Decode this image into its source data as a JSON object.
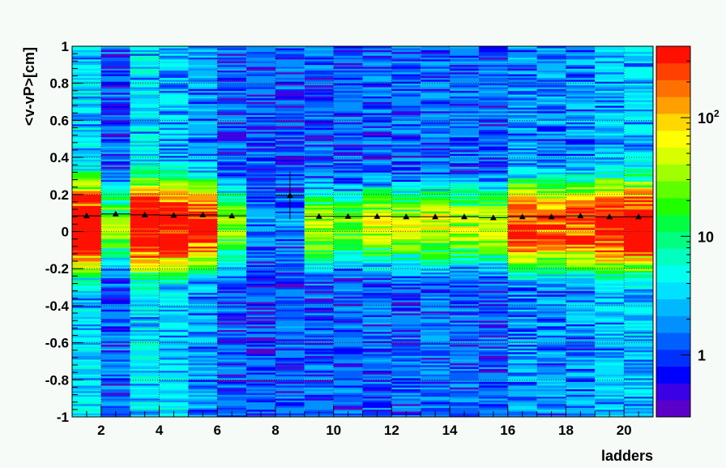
{
  "chart_data": {
    "type": "heatmap",
    "title": "",
    "xlabel": "ladders",
    "ylabel": "<v-vP>[cm]",
    "xlim": [
      1,
      21
    ],
    "ylim": [
      -1,
      1
    ],
    "x_ticks": [
      2,
      4,
      6,
      8,
      10,
      12,
      14,
      16,
      18,
      20
    ],
    "y_ticks": [
      -1,
      -0.8,
      -0.6,
      -0.4,
      -0.2,
      0,
      0.2,
      0.4,
      0.6,
      0.8,
      1
    ],
    "y_tick_labels": [
      "-1",
      "-0.8",
      "-0.6",
      "-0.4",
      "-0.2",
      "0",
      "0.2",
      "0.4",
      "0.6",
      "0.8",
      "1"
    ],
    "grid": true,
    "color_scale": "log",
    "colorbar_ticks": [
      {
        "value": 1,
        "label": "1"
      },
      {
        "value": 10,
        "label": "10"
      },
      {
        "value": 100,
        "label": "10",
        "sup": "2"
      }
    ],
    "colorbar_range": [
      0.3,
      400
    ],
    "palette": [
      "#5a00c8",
      "#3a00e6",
      "#0000ff",
      "#0030ff",
      "#0060ff",
      "#0090ff",
      "#00b8ff",
      "#00e0ff",
      "#00fff0",
      "#00ffc0",
      "#00ff80",
      "#00ff40",
      "#20ff00",
      "#60ff00",
      "#a0ff00",
      "#d8ff00",
      "#ffff00",
      "#ffd800",
      "#ffa000",
      "#ff7000",
      "#ff4000",
      "#ff1000"
    ],
    "profile_points": {
      "x": [
        1.5,
        2.5,
        3.5,
        4.5,
        5.5,
        6.5,
        8.5,
        9.5,
        10.5,
        11.5,
        12.5,
        13.5,
        14.5,
        15.5,
        16.5,
        17.5,
        18.5,
        19.5,
        20.5
      ],
      "y": [
        0.085,
        0.095,
        0.09,
        0.088,
        0.09,
        0.085,
        0.195,
        0.082,
        0.082,
        0.082,
        0.08,
        0.08,
        0.08,
        0.075,
        0.08,
        0.08,
        0.085,
        0.08,
        0.08
      ],
      "yerr": [
        0.005,
        0.005,
        0.005,
        0.005,
        0.005,
        0.005,
        0.13,
        0.005,
        0.005,
        0.005,
        0.005,
        0.005,
        0.005,
        0.005,
        0.005,
        0.005,
        0.005,
        0.005,
        0.005
      ]
    },
    "peak_density": [
      900,
      30,
      1000,
      800,
      400,
      30,
      0.5,
      0.8,
      40,
      25,
      55,
      45,
      60,
      45,
      45,
      350,
      250,
      300,
      600,
      800
    ]
  }
}
